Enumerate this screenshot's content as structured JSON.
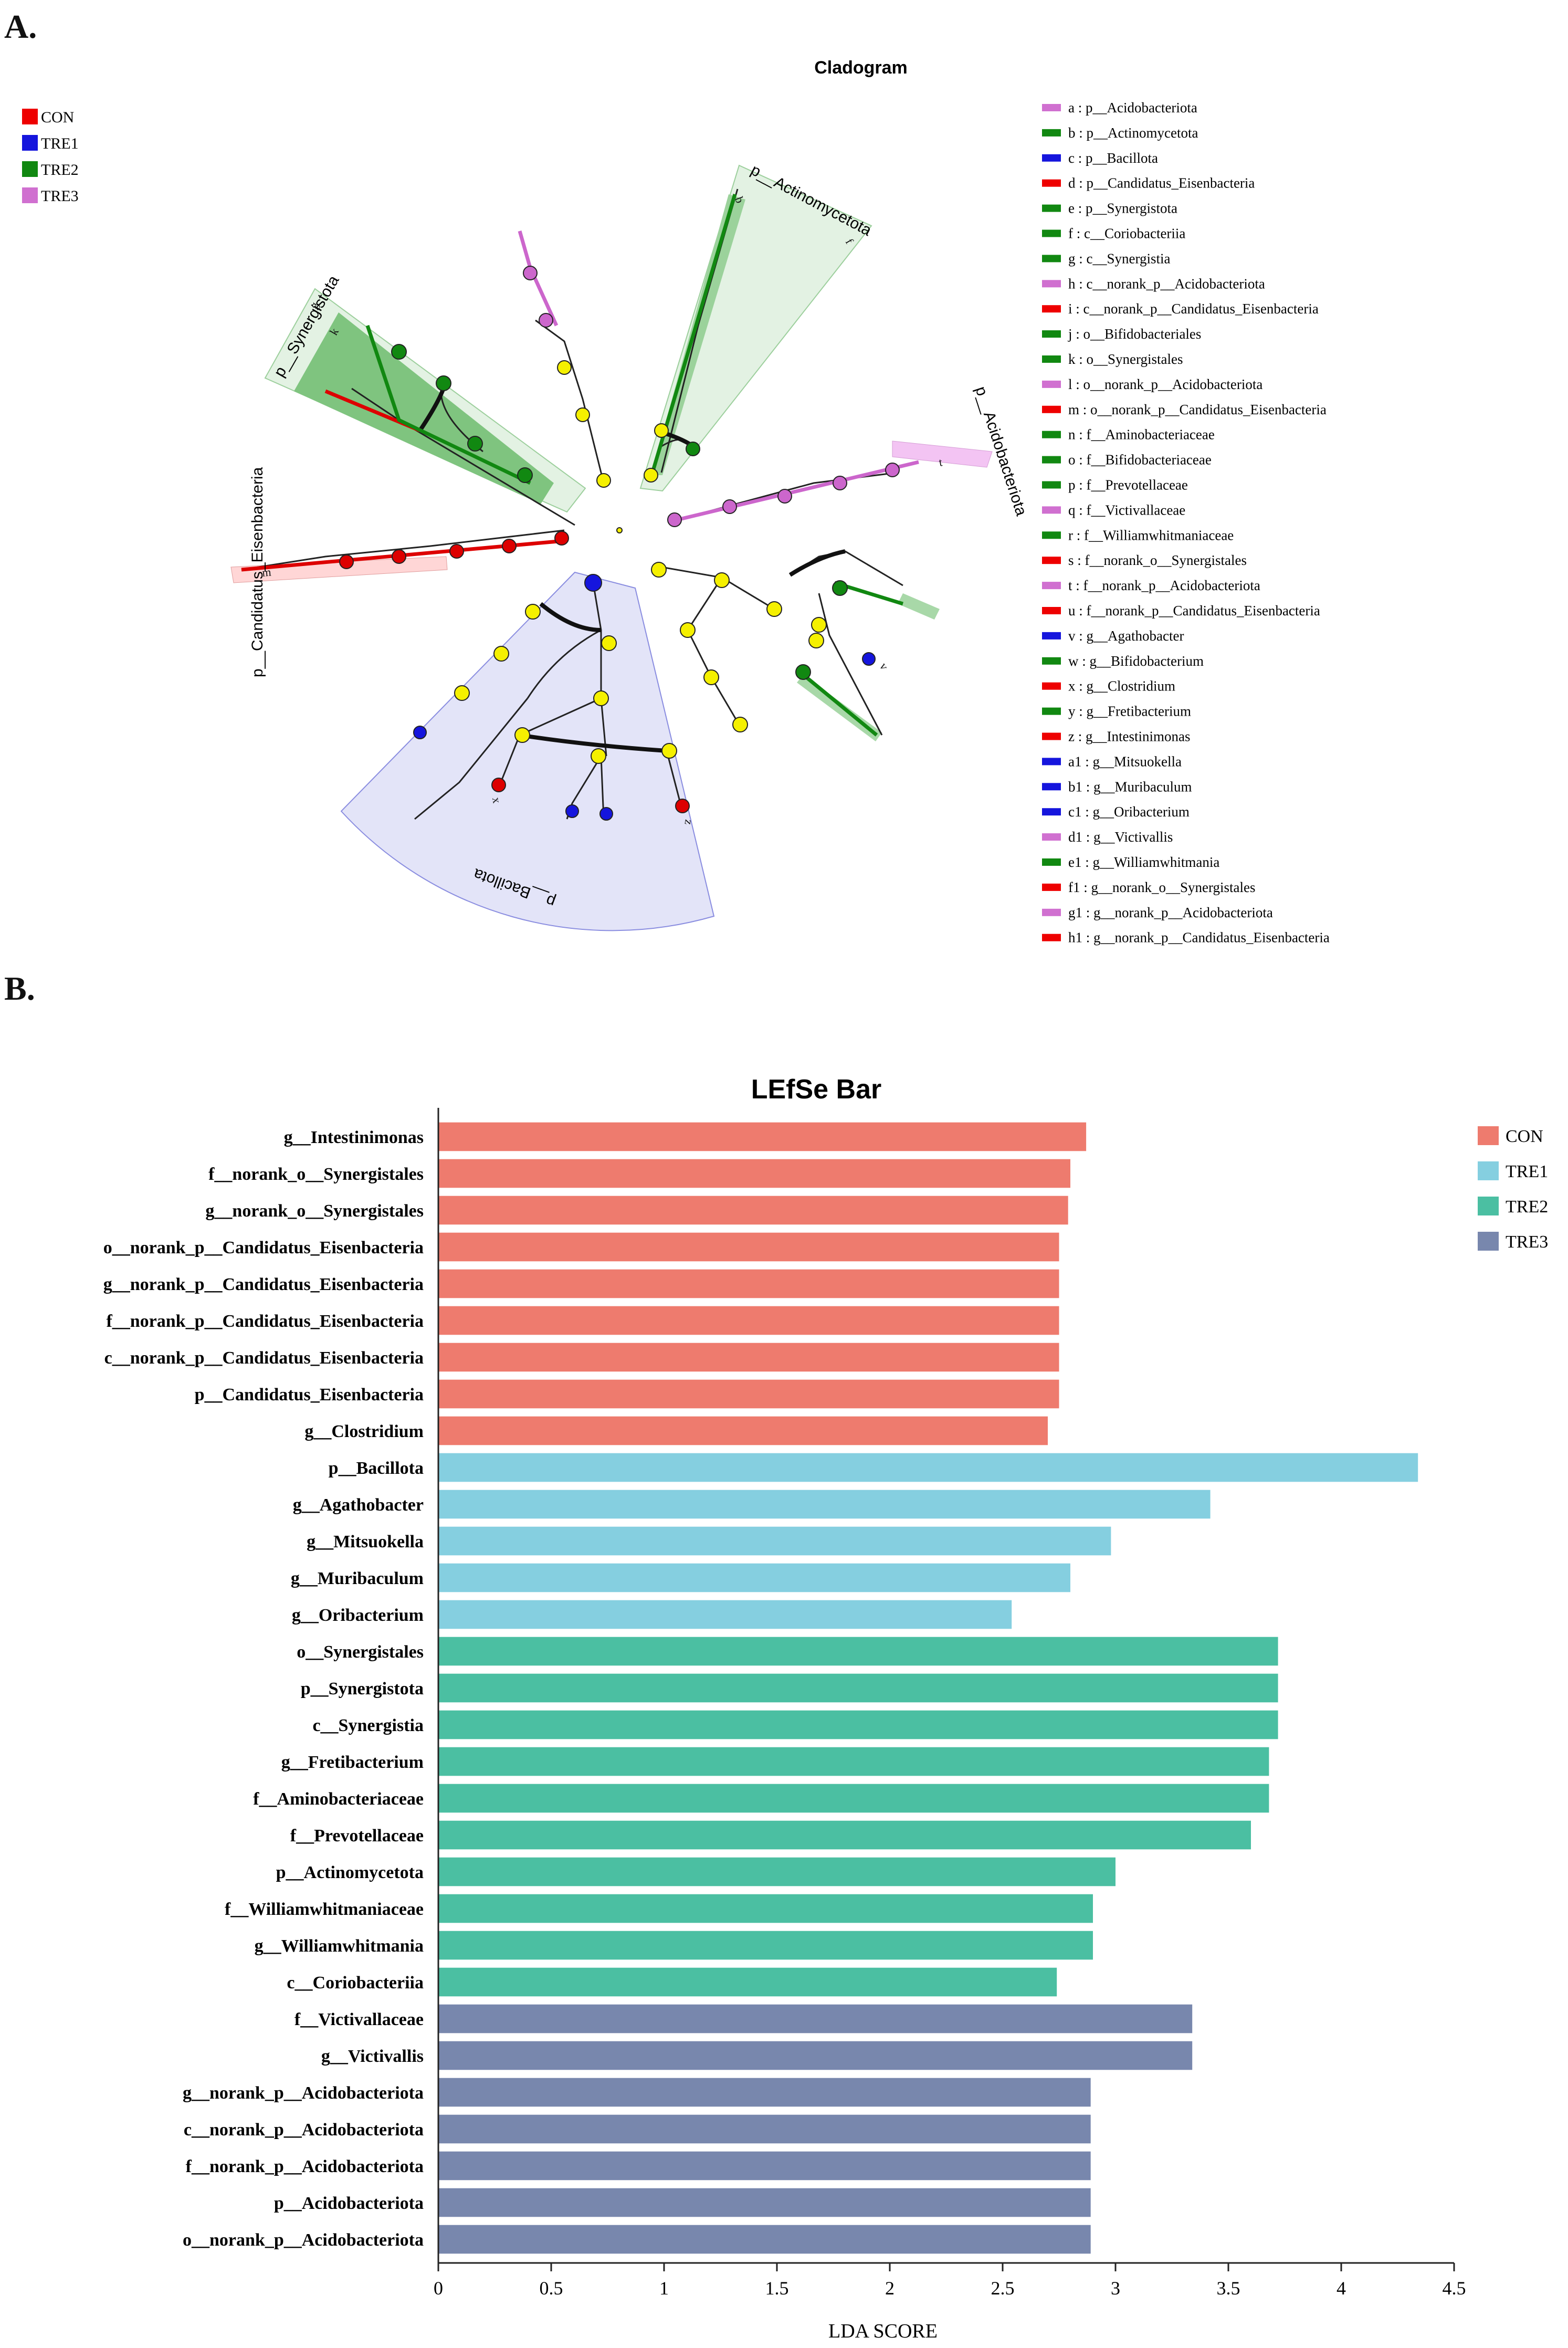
{
  "panels": {
    "a": "A.",
    "b": "B."
  },
  "colors": {
    "CON": "#ee0000",
    "TRE1": "#1515dd",
    "TRE2": "#118811",
    "TRE3": "#d070d0",
    "node": "#f5f000"
  },
  "bar_colors": {
    "CON": "#ee7b6e",
    "TRE1": "#85cfe0",
    "TRE2": "#4bbfa2",
    "TRE3": "#7887ad"
  },
  "chart_data": [
    {
      "type": "other",
      "title": "Cladogram",
      "groups": [
        "CON",
        "TRE1",
        "TRE2",
        "TRE3"
      ],
      "clade_labels": [
        "p__Actinomycetota",
        "p__Acidobacteriota",
        "p__Synergistota",
        "p__Candidatus_Eisenbacteria",
        "p__Bacillota"
      ],
      "node_letters": [
        "a",
        "b",
        "c",
        "d",
        "e",
        "f",
        "g",
        "h",
        "i",
        "j",
        "k",
        "l",
        "m",
        "n",
        "o",
        "p",
        "q",
        "r",
        "s",
        "t",
        "u",
        "v",
        "w",
        "x",
        "y",
        "z",
        "a1",
        "b1",
        "c1",
        "d1",
        "e1",
        "f1",
        "g1",
        "h1"
      ],
      "legend": [
        {
          "label": "a : p__Acidobacteriota",
          "group": "TRE3"
        },
        {
          "label": "b : p__Actinomycetota",
          "group": "TRE2"
        },
        {
          "label": "c : p__Bacillota",
          "group": "TRE1"
        },
        {
          "label": "d : p__Candidatus_Eisenbacteria",
          "group": "CON"
        },
        {
          "label": "e : p__Synergistota",
          "group": "TRE2"
        },
        {
          "label": "f : c__Coriobacteriia",
          "group": "TRE2"
        },
        {
          "label": "g : c__Synergistia",
          "group": "TRE2"
        },
        {
          "label": "h : c__norank_p__Acidobacteriota",
          "group": "TRE3"
        },
        {
          "label": "i : c__norank_p__Candidatus_Eisenbacteria",
          "group": "CON"
        },
        {
          "label": "j : o__Bifidobacteriales",
          "group": "TRE2"
        },
        {
          "label": "k : o__Synergistales",
          "group": "TRE2"
        },
        {
          "label": "l : o__norank_p__Acidobacteriota",
          "group": "TRE3"
        },
        {
          "label": "m : o__norank_p__Candidatus_Eisenbacteria",
          "group": "CON"
        },
        {
          "label": "n : f__Aminobacteriaceae",
          "group": "TRE2"
        },
        {
          "label": "o : f__Bifidobacteriaceae",
          "group": "TRE2"
        },
        {
          "label": "p : f__Prevotellaceae",
          "group": "TRE2"
        },
        {
          "label": "q : f__Victivallaceae",
          "group": "TRE3"
        },
        {
          "label": "r : f__Williamwhitmaniaceae",
          "group": "TRE2"
        },
        {
          "label": "s : f__norank_o__Synergistales",
          "group": "CON"
        },
        {
          "label": "t : f__norank_p__Acidobacteriota",
          "group": "TRE3"
        },
        {
          "label": "u : f__norank_p__Candidatus_Eisenbacteria",
          "group": "CON"
        },
        {
          "label": "v : g__Agathobacter",
          "group": "TRE1"
        },
        {
          "label": "w : g__Bifidobacterium",
          "group": "TRE2"
        },
        {
          "label": "x : g__Clostridium",
          "group": "CON"
        },
        {
          "label": "y : g__Fretibacterium",
          "group": "TRE2"
        },
        {
          "label": "z : g__Intestinimonas",
          "group": "CON"
        },
        {
          "label": "a1 : g__Mitsuokella",
          "group": "TRE1"
        },
        {
          "label": "b1 : g__Muribaculum",
          "group": "TRE1"
        },
        {
          "label": "c1 : g__Oribacterium",
          "group": "TRE1"
        },
        {
          "label": "d1 : g__Victivallis",
          "group": "TRE3"
        },
        {
          "label": "e1 : g__Williamwhitmania",
          "group": "TRE2"
        },
        {
          "label": "f1 : g__norank_o__Synergistales",
          "group": "CON"
        },
        {
          "label": "g1 : g__norank_p__Acidobacteriota",
          "group": "TRE3"
        },
        {
          "label": "h1 : g__norank_p__Candidatus_Eisenbacteria",
          "group": "CON"
        }
      ]
    },
    {
      "type": "bar",
      "orientation": "horizontal",
      "title": "LEfSe Bar",
      "xlabel": "LDA SCORE",
      "ylabel": "",
      "xlim": [
        0,
        4.5
      ],
      "xticks": [
        "0",
        "0.5",
        "1",
        "1.5",
        "2",
        "2.5",
        "3",
        "3.5",
        "4",
        "4.5"
      ],
      "legend": [
        "CON",
        "TRE1",
        "TRE2",
        "TRE3"
      ],
      "categories": [
        "g__Intestinimonas",
        "f__norank_o__Synergistales",
        "g__norank_o__Synergistales",
        "o__norank_p__Candidatus_Eisenbacteria",
        "g__norank_p__Candidatus_Eisenbacteria",
        "f__norank_p__Candidatus_Eisenbacteria",
        "c__norank_p__Candidatus_Eisenbacteria",
        "p__Candidatus_Eisenbacteria",
        "g__Clostridium",
        "p__Bacillota",
        "g__Agathobacter",
        "g__Mitsuokella",
        "g__Muribaculum",
        "g__Oribacterium",
        "o__Synergistales",
        "p__Synergistota",
        "c__Synergistia",
        "g__Fretibacterium",
        "f__Aminobacteriaceae",
        "f__Prevotellaceae",
        "p__Actinomycetota",
        "f__Williamwhitmaniaceae",
        "g__Williamwhitmania",
        "c__Coriobacteriia",
        "f__Victivallaceae",
        "g__Victivallis",
        "g__norank_p__Acidobacteriota",
        "c__norank_p__Acidobacteriota",
        "f__norank_p__Acidobacteriota",
        "p__Acidobacteriota",
        "o__norank_p__Acidobacteriota"
      ],
      "values": [
        2.87,
        2.8,
        2.79,
        2.75,
        2.75,
        2.75,
        2.75,
        2.75,
        2.7,
        4.34,
        3.42,
        2.98,
        2.8,
        2.54,
        3.72,
        3.72,
        3.72,
        3.68,
        3.68,
        3.6,
        3.0,
        2.9,
        2.9,
        2.74,
        3.34,
        3.34,
        2.89,
        2.89,
        2.89,
        2.89,
        2.89
      ],
      "groups": [
        "CON",
        "CON",
        "CON",
        "CON",
        "CON",
        "CON",
        "CON",
        "CON",
        "CON",
        "TRE1",
        "TRE1",
        "TRE1",
        "TRE1",
        "TRE1",
        "TRE2",
        "TRE2",
        "TRE2",
        "TRE2",
        "TRE2",
        "TRE2",
        "TRE2",
        "TRE2",
        "TRE2",
        "TRE2",
        "TRE3",
        "TRE3",
        "TRE3",
        "TRE3",
        "TRE3",
        "TRE3",
        "TRE3"
      ]
    }
  ]
}
